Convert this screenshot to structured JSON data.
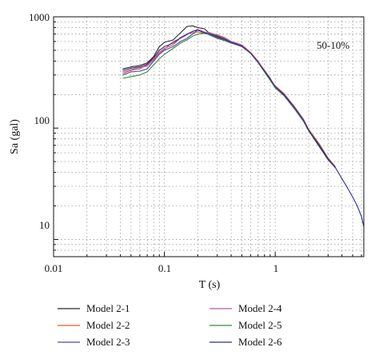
{
  "chart_data": {
    "type": "line",
    "xlabel": "T (s)",
    "ylabel": "Sa (gal)",
    "xscale": "log",
    "yscale": "log",
    "xlim": [
      0.01,
      6.3
    ],
    "ylim": [
      7,
      1000
    ],
    "x_ticks": [
      0.01,
      0.1,
      1
    ],
    "x_tick_labels": [
      "0.01",
      "0.1",
      "1"
    ],
    "y_ticks": [
      10,
      100,
      1000
    ],
    "y_tick_labels": [
      "10",
      "100",
      "1000"
    ],
    "grid": "dotted, major and minor",
    "annotation": "50-10%",
    "legend_position": "below plot, two columns",
    "series": [
      {
        "name": "Model 2-1",
        "color": "#2b2b2b",
        "x": [
          0.042,
          0.05,
          0.06,
          0.07,
          0.08,
          0.09,
          0.1,
          0.12,
          0.14,
          0.16,
          0.18,
          0.2,
          0.23,
          0.26,
          0.3,
          0.35,
          0.4,
          0.45,
          0.5,
          0.6,
          0.7,
          0.8,
          0.9,
          1.0,
          1.2,
          1.5,
          1.8,
          2.0,
          2.5,
          3.0,
          3.5
        ],
        "y": [
          340,
          355,
          365,
          385,
          440,
          540,
          590,
          620,
          720,
          820,
          830,
          800,
          780,
          700,
          660,
          620,
          580,
          580,
          550,
          470,
          390,
          330,
          280,
          235,
          200,
          150,
          118,
          95,
          68,
          52,
          44
        ]
      },
      {
        "name": "Model 2-2",
        "color": "#d6602a",
        "x": [
          0.042,
          0.05,
          0.06,
          0.07,
          0.08,
          0.09,
          0.1,
          0.12,
          0.14,
          0.16,
          0.18,
          0.2,
          0.23,
          0.26,
          0.3,
          0.35,
          0.4,
          0.45,
          0.5,
          0.6,
          0.7,
          0.8,
          0.9,
          1.0,
          1.2,
          1.5,
          1.8,
          2.0,
          2.5,
          3.0,
          3.5
        ],
        "y": [
          310,
          330,
          340,
          370,
          420,
          480,
          520,
          560,
          650,
          700,
          720,
          730,
          710,
          700,
          690,
          650,
          600,
          580,
          560,
          480,
          400,
          330,
          275,
          240,
          205,
          155,
          120,
          98,
          72,
          54,
          45
        ]
      },
      {
        "name": "Model 2-3",
        "color": "#4a47b0",
        "x": [
          0.042,
          0.05,
          0.06,
          0.07,
          0.08,
          0.09,
          0.1,
          0.12,
          0.14,
          0.16,
          0.18,
          0.2,
          0.23,
          0.26,
          0.3,
          0.35,
          0.4,
          0.45,
          0.5,
          0.6,
          0.7,
          0.8,
          0.9,
          1.0,
          1.2,
          1.5,
          1.8,
          2.0,
          2.5,
          3.0,
          3.5
        ],
        "y": [
          300,
          320,
          325,
          340,
          400,
          460,
          500,
          540,
          600,
          640,
          700,
          760,
          720,
          680,
          640,
          610,
          580,
          560,
          540,
          470,
          390,
          320,
          270,
          230,
          195,
          148,
          115,
          95,
          70,
          53,
          44
        ]
      },
      {
        "name": "Model 2-4",
        "color": "#b65aa8",
        "x": [
          0.042,
          0.05,
          0.06,
          0.07,
          0.08,
          0.09,
          0.1,
          0.12,
          0.14,
          0.16,
          0.18,
          0.2,
          0.23,
          0.26,
          0.3,
          0.35,
          0.4,
          0.45,
          0.5,
          0.6,
          0.7,
          0.8,
          0.9,
          1.0,
          1.2,
          1.5,
          1.8,
          2.0,
          2.5,
          3.0,
          3.5
        ],
        "y": [
          320,
          335,
          350,
          360,
          410,
          470,
          510,
          600,
          640,
          690,
          740,
          770,
          730,
          720,
          680,
          640,
          600,
          575,
          550,
          475,
          395,
          325,
          275,
          238,
          200,
          152,
          118,
          96,
          70,
          53,
          44
        ]
      },
      {
        "name": "Model 2-5",
        "color": "#3a8a3a",
        "x": [
          0.042,
          0.05,
          0.06,
          0.07,
          0.08,
          0.09,
          0.1,
          0.12,
          0.14,
          0.16,
          0.18,
          0.2,
          0.23,
          0.26,
          0.3,
          0.35,
          0.4,
          0.45,
          0.5,
          0.6,
          0.7,
          0.8,
          0.9,
          1.0,
          1.2,
          1.5,
          1.8,
          2.0,
          2.5,
          3.0,
          3.5
        ],
        "y": [
          280,
          290,
          300,
          320,
          370,
          420,
          460,
          520,
          580,
          620,
          670,
          700,
          710,
          690,
          650,
          615,
          590,
          565,
          545,
          470,
          390,
          320,
          270,
          232,
          198,
          150,
          117,
          95,
          70,
          53,
          44
        ]
      },
      {
        "name": "Model 2-6",
        "color": "#2e2f8f",
        "x": [
          0.042,
          0.05,
          0.06,
          0.07,
          0.08,
          0.09,
          0.1,
          0.12,
          0.14,
          0.16,
          0.18,
          0.2,
          0.23,
          0.26,
          0.3,
          0.35,
          0.4,
          0.45,
          0.5,
          0.6,
          0.7,
          0.8,
          0.9,
          1.0,
          1.2,
          1.5,
          1.8,
          2.0,
          2.5,
          3.0,
          3.5,
          4.0,
          4.5,
          5.0,
          5.5,
          6.0,
          6.3
        ],
        "y": [
          330,
          345,
          355,
          375,
          430,
          500,
          540,
          580,
          650,
          700,
          740,
          760,
          720,
          700,
          670,
          630,
          590,
          565,
          545,
          470,
          390,
          325,
          275,
          236,
          200,
          152,
          118,
          96,
          70,
          53,
          44,
          35,
          29,
          24,
          20,
          16,
          13
        ]
      }
    ]
  }
}
